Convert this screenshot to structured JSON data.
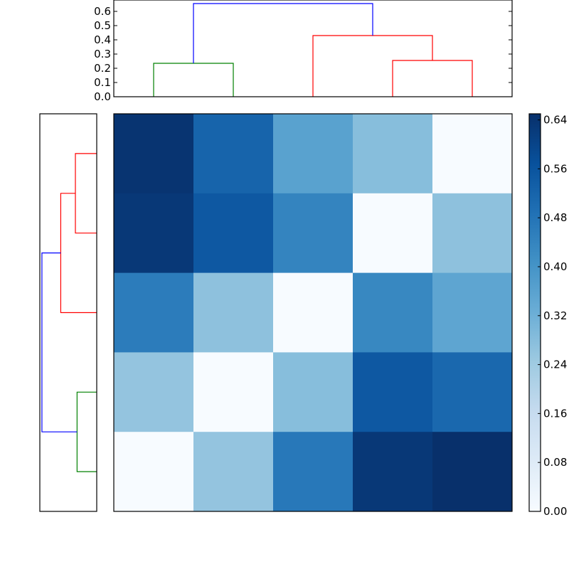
{
  "chart_data": [
    {
      "type": "dendrogram",
      "orientation": "top",
      "ylim": [
        0,
        0.68
      ],
      "yticks": [
        0.0,
        0.1,
        0.2,
        0.3,
        0.4,
        0.5,
        0.6
      ],
      "ytick_labels": [
        "0.0",
        "0.1",
        "0.2",
        "0.3",
        "0.4",
        "0.5",
        "0.6"
      ],
      "leaf_count": 5,
      "links": [
        {
          "left": 0,
          "right": 1,
          "height": 0.235,
          "color": "#008000"
        },
        {
          "left": 3,
          "right": 4,
          "height": 0.255,
          "color": "#ff0000"
        },
        {
          "left": 2,
          "right": 3.5,
          "height": 0.43,
          "color": "#ff0000"
        },
        {
          "left": 0.5,
          "right": 2.75,
          "height": 0.655,
          "color": "#0000ff"
        }
      ],
      "link_bases": [
        [
          0,
          0
        ],
        [
          0,
          0
        ],
        [
          0,
          0.255
        ],
        [
          0.235,
          0.43
        ]
      ]
    },
    {
      "type": "dendrogram",
      "orientation": "left",
      "leaf_count": 5,
      "links": [
        {
          "left": 0,
          "right": 1,
          "height": 0.235,
          "color": "#008000"
        },
        {
          "left": 3,
          "right": 4,
          "height": 0.255,
          "color": "#ff0000"
        },
        {
          "left": 2,
          "right": 3.5,
          "height": 0.43,
          "color": "#ff0000"
        },
        {
          "left": 0.5,
          "right": 2.75,
          "height": 0.655,
          "color": "#0000ff"
        }
      ],
      "link_bases": [
        [
          0,
          0
        ],
        [
          0,
          0
        ],
        [
          0,
          0.255
        ],
        [
          0.235,
          0.43
        ]
      ],
      "xlim_reversed": [
        0.68,
        0
      ]
    },
    {
      "type": "heatmap",
      "rows": 5,
      "cols": 5,
      "values": [
        [
          0.64,
          0.52,
          0.36,
          0.28,
          0.0
        ],
        [
          0.63,
          0.55,
          0.44,
          0.0,
          0.27
        ],
        [
          0.46,
          0.27,
          0.0,
          0.43,
          0.35
        ],
        [
          0.26,
          0.0,
          0.28,
          0.55,
          0.51
        ],
        [
          0.0,
          0.26,
          0.47,
          0.63,
          0.65
        ]
      ],
      "colormap": "Blues",
      "color_stops": [
        "#f7fbff",
        "#deebf7",
        "#c6dbef",
        "#9ecae1",
        "#6baed6",
        "#4292c6",
        "#2171b5",
        "#08519c",
        "#08306b"
      ],
      "colorbar": {
        "min": 0.0,
        "max": 0.65,
        "ticks": [
          0.0,
          0.08,
          0.16,
          0.24,
          0.32,
          0.4,
          0.48,
          0.56,
          0.64
        ],
        "tick_labels": [
          "0.00",
          "0.08",
          "0.16",
          "0.24",
          "0.32",
          "0.40",
          "0.48",
          "0.56",
          "0.64"
        ]
      }
    }
  ]
}
